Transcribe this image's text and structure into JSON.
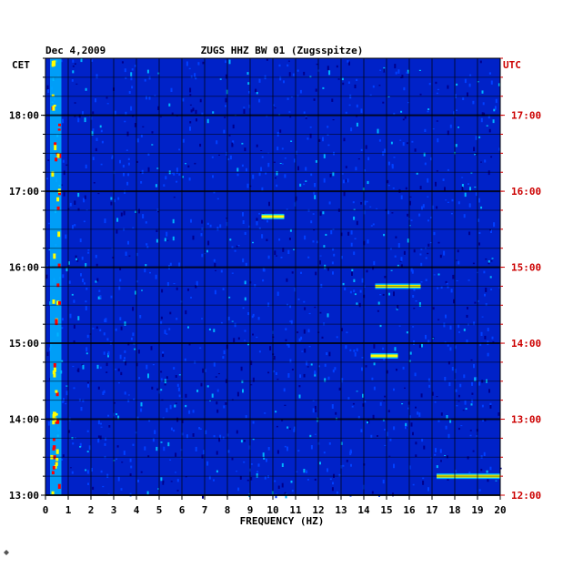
{
  "chart_data": {
    "type": "heatmap",
    "title": "ZUGS HHZ BW 01 (Zugsspitze)",
    "date": "Dec 4,2009",
    "xlabel": "FREQUENCY (HZ)",
    "x_ticks": [
      "0",
      "1",
      "2",
      "3",
      "4",
      "5",
      "6",
      "7",
      "8",
      "9",
      "10",
      "11",
      "12",
      "13",
      "14",
      "15",
      "16",
      "17",
      "18",
      "19",
      "20"
    ],
    "xlim": [
      0,
      20
    ],
    "left_axis_label": "CET",
    "right_axis_label": "UTC",
    "left_ticks": [
      "18:00",
      "17:00",
      "16:00",
      "15:00",
      "14:00",
      "13:00"
    ],
    "right_ticks": [
      "17:00",
      "16:00",
      "15:00",
      "14:00",
      "13:00",
      "12:00"
    ],
    "time_range_cet": [
      "13:00",
      "18:45"
    ],
    "colors": {
      "background": "#0022c8",
      "low": "#00008b",
      "mid": "#00b4ff",
      "high": "#ffff00",
      "peak": "#ff0000",
      "right_axis": "#cc0000",
      "left_axis": "#000000",
      "grid": "#000000"
    },
    "features": [
      {
        "note": "strong low-frequency band",
        "freq_range": [
          0.2,
          0.7
        ],
        "time_range": [
          "13:00",
          "18:45"
        ]
      },
      {
        "note": "persistent line",
        "freq_range": [
          17.2,
          20
        ],
        "time": "13:15"
      },
      {
        "note": "burst",
        "freq_range": [
          14.5,
          16.5
        ],
        "time": "15:45"
      },
      {
        "note": "burst",
        "freq_range": [
          14.3,
          15.5
        ],
        "time": "14:50"
      },
      {
        "note": "burst",
        "freq_range": [
          9.5,
          10.5
        ],
        "time": "16:40"
      }
    ]
  }
}
